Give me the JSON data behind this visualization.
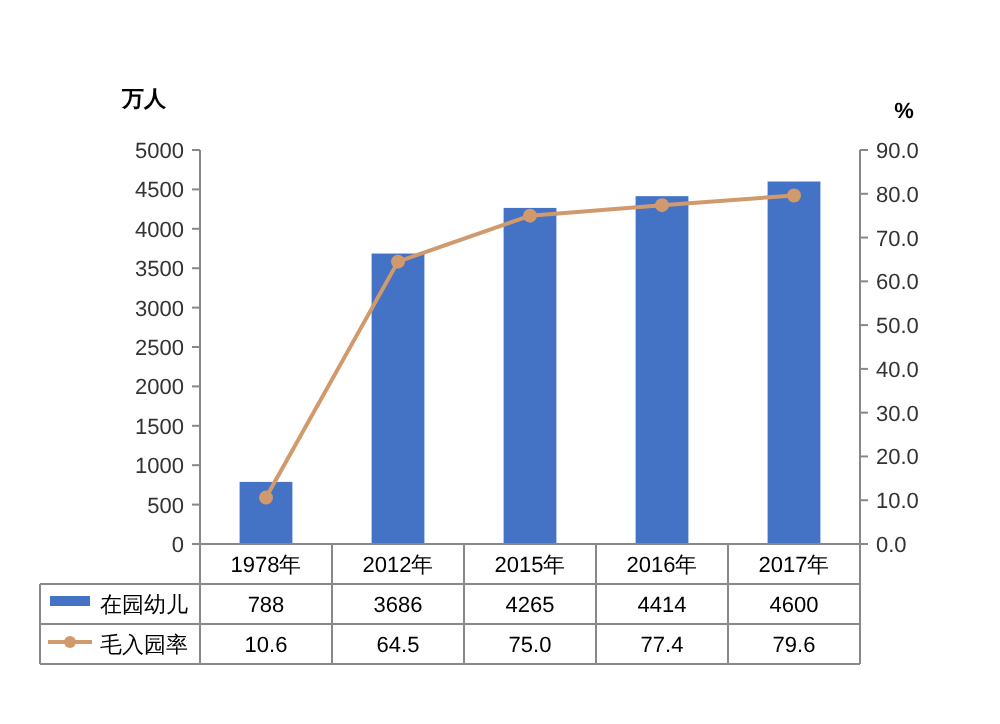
{
  "chart_data": {
    "type": "bar",
    "ylabel": "万人",
    "y2label": "%",
    "categories": [
      "1978年",
      "2012年",
      "2015年",
      "2016年",
      "2017年"
    ],
    "series": [
      {
        "name": "在园幼儿",
        "color": "#4472c4",
        "values": [
          788,
          3686,
          4265,
          4414,
          4600
        ],
        "value_labels": [
          "788",
          "3686",
          "4265",
          "4414",
          "4600"
        ]
      },
      {
        "name": "毛入园率",
        "type": "line",
        "axis": "y2",
        "color": "#d09a6c",
        "marker": "circle",
        "line_style": "solid",
        "values": [
          10.6,
          64.5,
          75.0,
          77.4,
          79.6
        ],
        "value_labels": [
          "10.6",
          "64.5",
          "75.0",
          "77.4",
          "79.6"
        ]
      }
    ],
    "ylim": [
      0,
      5000
    ],
    "yticks": [
      0,
      500,
      1000,
      1500,
      2000,
      2500,
      3000,
      3500,
      4000,
      4500,
      5000
    ],
    "y2lim": [
      0,
      90
    ],
    "y2ticks": [
      {
        "value": 0,
        "label": "0.0"
      },
      {
        "value": 10,
        "label": "10.0"
      },
      {
        "value": 20,
        "label": "20.0"
      },
      {
        "value": 30,
        "label": "30.0"
      },
      {
        "value": 40,
        "label": "40.0"
      },
      {
        "value": 50,
        "label": "50.0"
      },
      {
        "value": 60,
        "label": "60.0"
      },
      {
        "value": 70,
        "label": "70.0"
      },
      {
        "value": 80,
        "label": "80.0"
      },
      {
        "value": 90,
        "label": "90.0"
      }
    ],
    "grid": false,
    "legend": "bottom"
  }
}
